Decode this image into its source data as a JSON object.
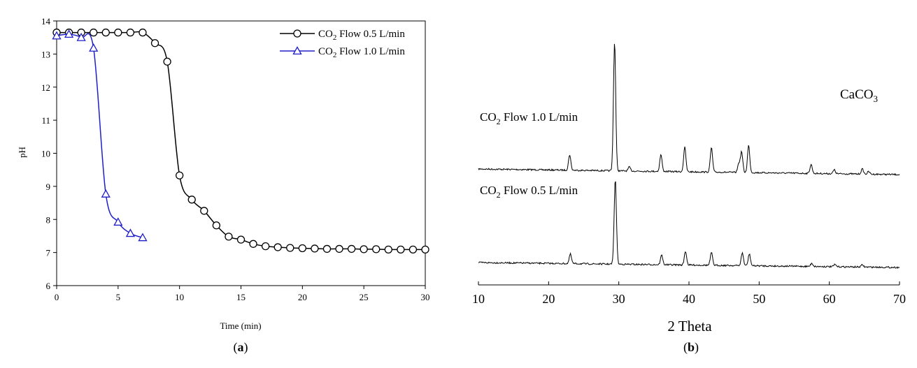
{
  "panel_labels": {
    "a": "a",
    "b": "b"
  },
  "chart_data": [
    {
      "type": "line",
      "xlabel": "Time (min)",
      "ylabel": "pH",
      "xlim": [
        0,
        30
      ],
      "ylim": [
        6,
        14
      ],
      "xticks": [
        0,
        5,
        10,
        15,
        20,
        25,
        30
      ],
      "yticks": [
        6,
        7,
        8,
        9,
        10,
        11,
        12,
        13,
        14
      ],
      "legend_position": "top-right",
      "series": [
        {
          "name_main": "CO",
          "name_sub": "2",
          "name_rest": " Flow 0.5 L/min",
          "marker": "circle",
          "color": "#000000",
          "x": [
            0,
            1,
            2,
            3,
            4,
            5,
            6,
            7,
            8,
            9,
            10,
            11,
            12,
            13,
            14,
            15,
            16,
            17,
            18,
            19,
            20,
            21,
            22,
            23,
            24,
            25,
            26,
            27,
            28,
            29,
            30
          ],
          "y": [
            13.65,
            13.65,
            13.65,
            13.65,
            13.65,
            13.65,
            13.65,
            13.65,
            13.33,
            12.77,
            9.33,
            8.6,
            8.26,
            7.82,
            7.48,
            7.39,
            7.26,
            7.19,
            7.16,
            7.14,
            7.13,
            7.12,
            7.11,
            7.11,
            7.11,
            7.1,
            7.1,
            7.09,
            7.09,
            7.09,
            7.09
          ]
        },
        {
          "name_main": "CO",
          "name_sub": "2",
          "name_rest": " Flow 1.0 L/min",
          "marker": "triangle",
          "color": "#1f1fc8",
          "x": [
            0,
            1,
            2,
            3,
            4,
            5,
            6,
            7
          ],
          "y": [
            13.55,
            13.6,
            13.5,
            13.18,
            8.77,
            7.92,
            7.58,
            7.45
          ]
        }
      ]
    },
    {
      "type": "line",
      "xlabel": "2 Theta",
      "xlim": [
        10,
        70
      ],
      "xticks": [
        10,
        20,
        30,
        40,
        50,
        60,
        70
      ],
      "annotation_main": "CaCO",
      "annotation_sub": "3",
      "series": [
        {
          "name_main": "CO",
          "name_sub": "2",
          "name_rest": " Flow 1.0 L/min",
          "baseline": 0,
          "peaks": [
            {
              "x": 23.0,
              "h": 0.12
            },
            {
              "x": 29.4,
              "h": 1.0
            },
            {
              "x": 31.5,
              "h": 0.03
            },
            {
              "x": 36.0,
              "h": 0.13
            },
            {
              "x": 39.4,
              "h": 0.19
            },
            {
              "x": 43.2,
              "h": 0.19
            },
            {
              "x": 47.1,
              "h": 0.07
            },
            {
              "x": 47.5,
              "h": 0.16
            },
            {
              "x": 48.5,
              "h": 0.21
            },
            {
              "x": 57.4,
              "h": 0.07
            },
            {
              "x": 60.7,
              "h": 0.03
            },
            {
              "x": 64.7,
              "h": 0.04
            },
            {
              "x": 65.6,
              "h": 0.02
            }
          ]
        },
        {
          "name_main": "CO",
          "name_sub": "2",
          "name_rest": " Flow 0.5 L/min",
          "baseline": 0,
          "peaks": [
            {
              "x": 23.1,
              "h": 0.09
            },
            {
              "x": 29.5,
              "h": 0.8
            },
            {
              "x": 36.1,
              "h": 0.09
            },
            {
              "x": 39.5,
              "h": 0.13
            },
            {
              "x": 43.2,
              "h": 0.12
            },
            {
              "x": 47.6,
              "h": 0.12
            },
            {
              "x": 48.6,
              "h": 0.11
            },
            {
              "x": 57.5,
              "h": 0.03
            },
            {
              "x": 60.8,
              "h": 0.02
            },
            {
              "x": 64.7,
              "h": 0.02
            }
          ]
        }
      ]
    }
  ]
}
